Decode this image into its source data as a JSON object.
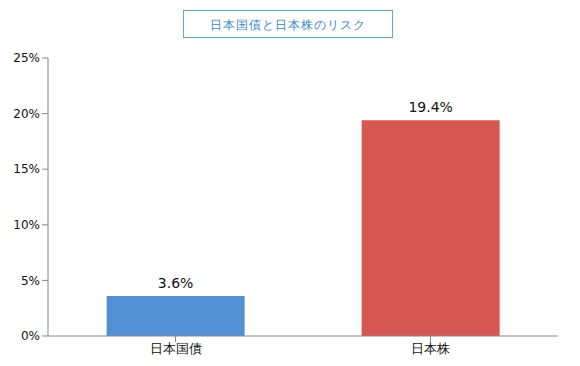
{
  "chart_data": {
    "type": "bar",
    "title": "日本国債と日本株のリスク",
    "categories": [
      "日本国債",
      "日本株"
    ],
    "values": [
      3.6,
      19.4
    ],
    "value_labels": [
      "3.6%",
      "19.4%"
    ],
    "colors": [
      "#5390d3",
      "#d65651"
    ],
    "ylim": [
      0,
      25
    ],
    "yticks": [
      {
        "value": 0,
        "label": "0%"
      },
      {
        "value": 5,
        "label": "5%"
      },
      {
        "value": 10,
        "label": "10%"
      },
      {
        "value": 15,
        "label": "15%"
      },
      {
        "value": 20,
        "label": "20%"
      },
      {
        "value": 25,
        "label": "25%"
      }
    ],
    "grid": false,
    "data_labels": true
  }
}
